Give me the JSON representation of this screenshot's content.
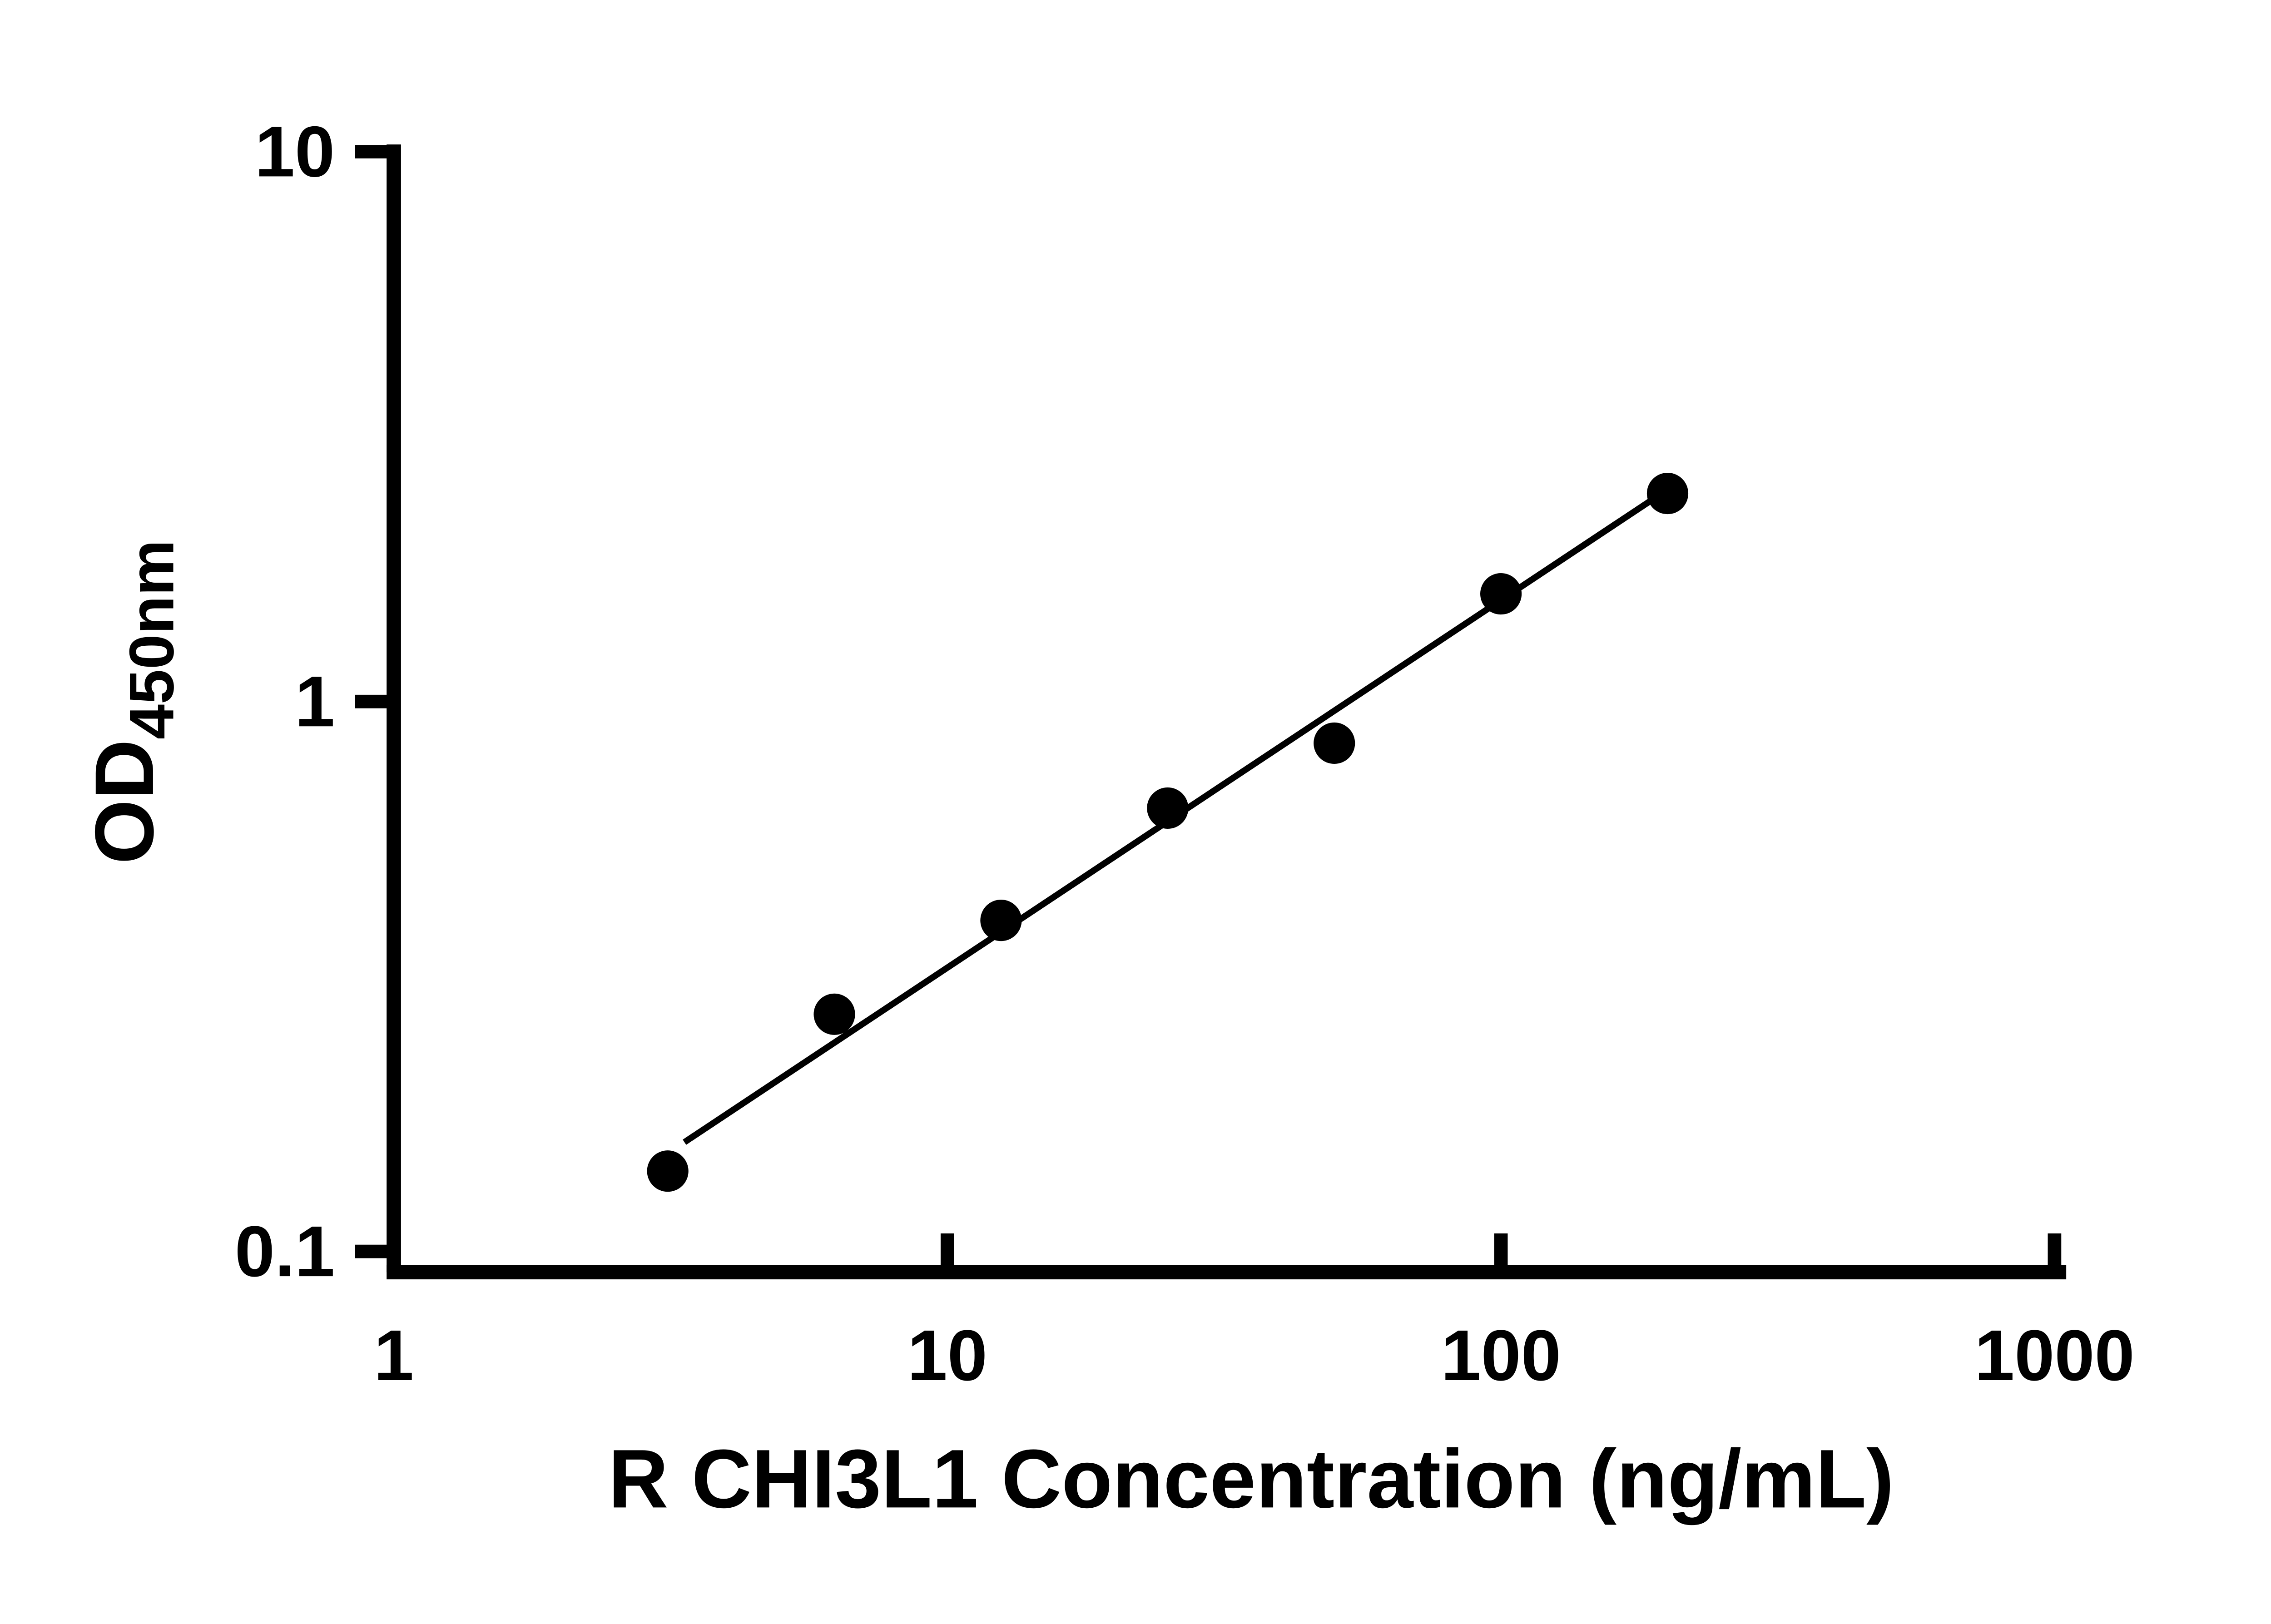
{
  "figure": {
    "background": "#ffffff"
  },
  "chart_data": {
    "type": "scatter",
    "title": "",
    "xlabel": "R CHI3L1 Concentration (ng/mL)",
    "ylabel_main": "OD",
    "ylabel_sub": "450nm",
    "x_scale": "log",
    "y_scale": "log",
    "xlim": [
      1,
      1000
    ],
    "ylim": [
      0.1,
      10
    ],
    "x_ticks": [
      1,
      10,
      100,
      1000
    ],
    "x_tick_labels": [
      "1",
      "10",
      "100",
      "1000"
    ],
    "y_ticks": [
      0.1,
      1,
      10
    ],
    "y_tick_labels": [
      "0.1",
      "1",
      "10"
    ],
    "grid": false,
    "legend": "none",
    "x": [
      3.125,
      6.25,
      12.5,
      25,
      50,
      100,
      200
    ],
    "y": [
      0.14,
      0.27,
      0.4,
      0.64,
      0.84,
      1.57,
      2.39
    ],
    "trendline": {
      "x": [
        3.35,
        200
      ],
      "y": [
        0.158,
        2.43
      ]
    },
    "marker_color": "#000000",
    "line_color": "#000000",
    "axis_color": "#000000"
  }
}
